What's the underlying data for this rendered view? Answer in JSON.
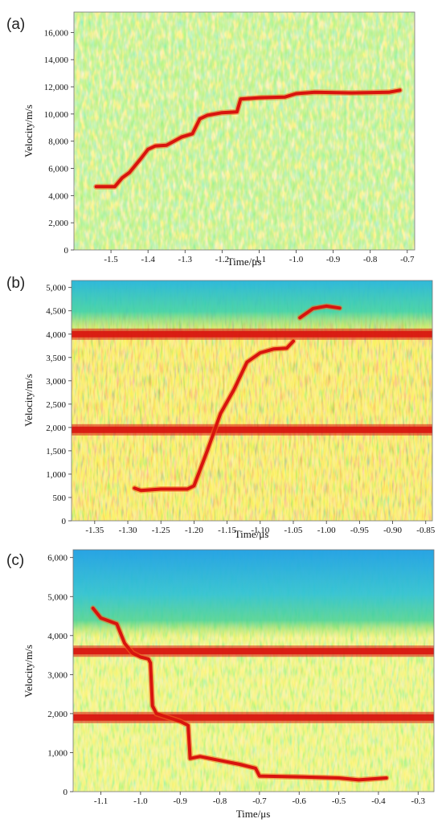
{
  "colors": {
    "background_low": "#9fe35a",
    "speckle_cyan": "#38c7b0",
    "speckle_yellow": "#f5ee3c",
    "trace_red": "#d8140e",
    "band_blue": "#1ea7e6",
    "band_orange": "#f09a22"
  },
  "chart_data": [
    {
      "panel": "(a)",
      "type": "heatmap",
      "xlabel": "Time/μs",
      "ylabel": "Velocity/m/s",
      "xlim": [
        -1.6,
        -0.68
      ],
      "ylim": [
        0,
        17500
      ],
      "x_ticks": [
        -1.5,
        -1.4,
        -1.3,
        -1.2,
        -1.1,
        -1.0,
        -0.9,
        -0.8,
        -0.7
      ],
      "x_tick_labels": [
        "-1.5",
        "-1.4",
        "-1.3",
        "-1.2",
        "-1.1",
        "-1.0",
        "-0.9",
        "-0.8",
        "-0.7"
      ],
      "y_ticks": [
        0,
        2000,
        4000,
        6000,
        8000,
        10000,
        12000,
        14000,
        16000
      ],
      "y_tick_labels": [
        "0",
        "2,000",
        "4,000",
        "6,000",
        "8,000",
        "10,000",
        "12,000",
        "14,000",
        "16,000"
      ],
      "series": [
        {
          "x": [
            -1.54,
            -1.49,
            -1.47,
            -1.45,
            -1.42,
            -1.4,
            -1.38,
            -1.35,
            -1.33,
            -1.31,
            -1.28,
            -1.26,
            -1.24,
            -1.2,
            -1.16,
            -1.15,
            -1.1,
            -1.03,
            -1.0,
            -0.95,
            -0.85,
            -0.75,
            -0.72
          ],
          "y": [
            4650,
            4650,
            5300,
            5700,
            6700,
            7400,
            7650,
            7700,
            8000,
            8300,
            8550,
            9650,
            9900,
            10100,
            10150,
            11100,
            11200,
            11250,
            11500,
            11600,
            11550,
            11600,
            11750
          ]
        }
      ]
    },
    {
      "panel": "(b)",
      "type": "heatmap",
      "xlabel": "Time/μs",
      "ylabel": "Velocity/m/s",
      "xlim": [
        -1.385,
        -0.84
      ],
      "ylim": [
        0,
        5150
      ],
      "x_ticks": [
        -1.35,
        -1.3,
        -1.25,
        -1.2,
        -1.15,
        -1.1,
        -1.05,
        -1.0,
        -0.95,
        -0.9,
        -0.85
      ],
      "x_tick_labels": [
        "-1.35",
        "-1.30",
        "-1.25",
        "-1.20",
        "-1.15",
        "-1.10",
        "-1.05",
        "-1.00",
        "-0.95",
        "-0.90",
        "-0.85"
      ],
      "y_ticks": [
        0,
        500,
        1000,
        1500,
        2000,
        2500,
        3000,
        3500,
        4000,
        4500,
        5000
      ],
      "y_tick_labels": [
        "0",
        "500",
        "1,000",
        "1,500",
        "2,000",
        "2,500",
        "3,000",
        "3,500",
        "4,000",
        "4,500",
        "5,000"
      ],
      "bands": [
        1950,
        4000
      ],
      "series": [
        {
          "x": [
            -1.29,
            -1.28,
            -1.25,
            -1.21,
            -1.2,
            -1.18,
            -1.16,
            -1.14,
            -1.12,
            -1.1,
            -1.08,
            -1.06,
            -1.05
          ],
          "y": [
            700,
            650,
            680,
            680,
            750,
            1500,
            2300,
            2800,
            3400,
            3600,
            3680,
            3700,
            3850
          ]
        },
        {
          "x": [
            -1.04,
            -1.02,
            -1.0,
            -0.98
          ],
          "y": [
            4350,
            4550,
            4600,
            4560
          ]
        }
      ]
    },
    {
      "panel": "(c)",
      "type": "heatmap",
      "xlabel": "Time/μs",
      "ylabel": "Velocity/m/s",
      "xlim": [
        -1.17,
        -0.26
      ],
      "ylim": [
        0,
        6200
      ],
      "x_ticks": [
        -1.1,
        -1.0,
        -0.9,
        -0.8,
        -0.7,
        -0.6,
        -0.5,
        -0.4,
        -0.3
      ],
      "x_tick_labels": [
        "-1.1",
        "-1.0",
        "-0.9",
        "-0.8",
        "-0.7",
        "-0.6",
        "-0.5",
        "-0.4",
        "-0.3"
      ],
      "y_ticks": [
        0,
        1000,
        2000,
        3000,
        4000,
        5000,
        6000
      ],
      "y_tick_labels": [
        "0",
        "1,000",
        "2,000",
        "3,000",
        "4,000",
        "5,000",
        "6,000"
      ],
      "bands": [
        1900,
        3600
      ],
      "series": [
        {
          "x": [
            -1.12,
            -1.1,
            -1.06,
            -1.04,
            -1.02,
            -1.0,
            -0.98,
            -0.975,
            -0.97,
            -0.96,
            -0.9,
            -0.88,
            -0.875,
            -0.85,
            -0.8,
            -0.75,
            -0.71,
            -0.7,
            -0.6,
            -0.5,
            -0.45,
            -0.38
          ],
          "y": [
            4700,
            4450,
            4300,
            3800,
            3550,
            3450,
            3400,
            3300,
            2200,
            2000,
            1800,
            1700,
            850,
            900,
            800,
            700,
            600,
            400,
            380,
            350,
            300,
            350
          ]
        }
      ]
    }
  ]
}
